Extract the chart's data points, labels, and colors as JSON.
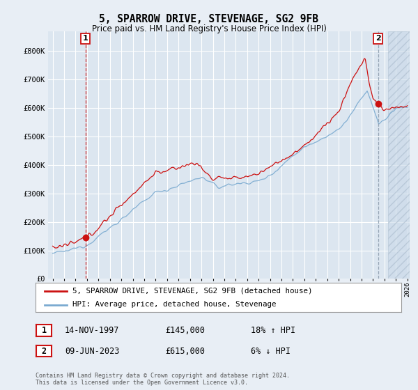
{
  "title": "5, SPARROW DRIVE, STEVENAGE, SG2 9FB",
  "subtitle": "Price paid vs. HM Land Registry's House Price Index (HPI)",
  "hpi_color": "#7aaad0",
  "price_color": "#cc1111",
  "bg_color": "#e8eef5",
  "plot_bg": "#dce6f0",
  "grid_color": "#ffffff",
  "ylim": [
    0,
    870000
  ],
  "yticks": [
    0,
    100000,
    200000,
    300000,
    400000,
    500000,
    600000,
    700000,
    800000
  ],
  "ytick_labels": [
    "£0",
    "£100K",
    "£200K",
    "£300K",
    "£400K",
    "£500K",
    "£600K",
    "£700K",
    "£800K"
  ],
  "legend_label_price": "5, SPARROW DRIVE, STEVENAGE, SG2 9FB (detached house)",
  "legend_label_hpi": "HPI: Average price, detached house, Stevenage",
  "annotation1_label": "1",
  "annotation1_date": "14-NOV-1997",
  "annotation1_price": "£145,000",
  "annotation1_hpi": "18% ↑ HPI",
  "annotation2_label": "2",
  "annotation2_date": "09-JUN-2023",
  "annotation2_price": "£615,000",
  "annotation2_hpi": "6% ↓ HPI",
  "footer": "Contains HM Land Registry data © Crown copyright and database right 2024.\nThis data is licensed under the Open Government Licence v3.0.",
  "transaction1_year": 1997.87,
  "transaction1_value": 145000,
  "transaction2_year": 2023.44,
  "transaction2_value": 615000,
  "hatch_after_year": 2024.33
}
